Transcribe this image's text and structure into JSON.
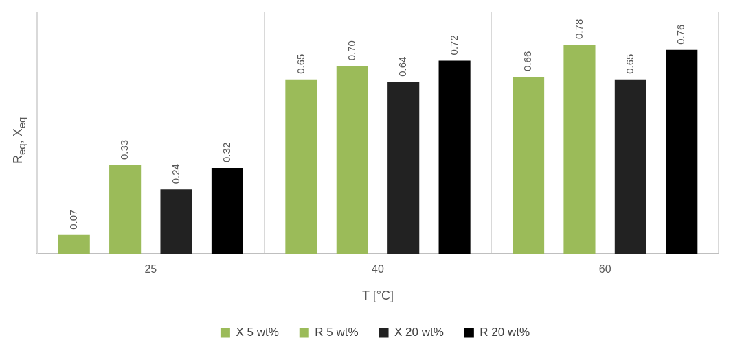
{
  "chart_data": {
    "type": "bar",
    "xlabel": "T [°C]",
    "ylabel": "R$_{eq}$, X$_{eq}$",
    "categories": [
      "25",
      "40",
      "60"
    ],
    "series": [
      {
        "name": "X 5 wt%",
        "color": "#9bbb59",
        "values": [
          0.07,
          0.65,
          0.66
        ],
        "value_labels": [
          "0.07",
          "0.65",
          "0.66"
        ]
      },
      {
        "name": "R 5 wt%",
        "color": "#9bbb59",
        "values": [
          0.33,
          0.7,
          0.78
        ],
        "value_labels": [
          "0.33",
          "0.70",
          "0.78"
        ]
      },
      {
        "name": "X 20 wt%",
        "color": "#222222",
        "values": [
          0.24,
          0.64,
          0.65
        ],
        "value_labels": [
          "0.24",
          "0.64",
          "0.65"
        ]
      },
      {
        "name": "R 20 wt%",
        "color": "#000000",
        "values": [
          0.32,
          0.72,
          0.76
        ],
        "value_labels": [
          "0.32",
          "0.72",
          "0.76"
        ]
      }
    ],
    "grid": "x",
    "legend": "bottom"
  }
}
